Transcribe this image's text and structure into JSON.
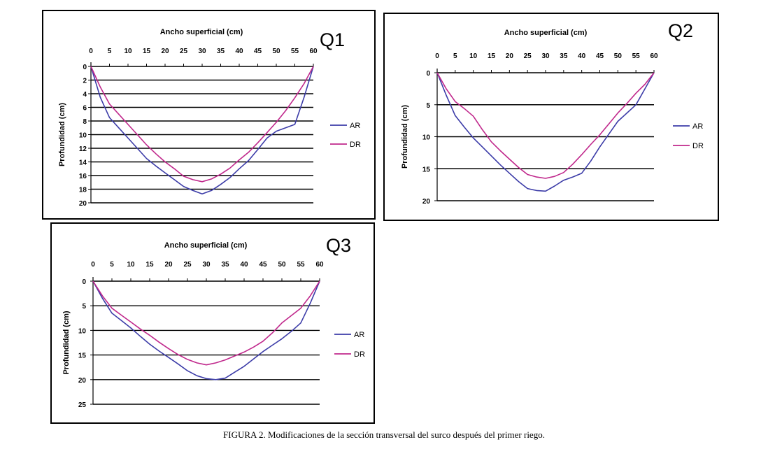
{
  "caption": "FIGURA 2. Modificaciones de la sección transversal del surco después del primer riego.",
  "colors": {
    "AR": "#3c3ca8",
    "DR": "#c0288c",
    "grid": "#000000"
  },
  "chart_data": [
    {
      "type": "line",
      "title": "Q1",
      "xlabel": "Ancho superficial (cm)",
      "ylabel": "Profundidad (cm)",
      "xlim": [
        0,
        60
      ],
      "ylim": [
        0,
        20
      ],
      "y_inverted": true,
      "x_axis_position": "top",
      "xticks": [
        0,
        5,
        10,
        15,
        20,
        25,
        30,
        35,
        40,
        45,
        50,
        55,
        60
      ],
      "yticks": [
        0,
        2,
        4,
        6,
        8,
        10,
        12,
        14,
        16,
        18,
        20
      ],
      "legend": "right",
      "x": [
        0,
        2.5,
        5,
        7.5,
        10,
        12.5,
        15,
        17.5,
        20,
        22.5,
        25,
        27.5,
        30,
        32.5,
        35,
        37.5,
        40,
        42.5,
        45,
        47.5,
        50,
        52.5,
        55,
        57.5,
        60
      ],
      "series": [
        {
          "name": "AR",
          "values": [
            0,
            4.5,
            7.5,
            9,
            10.5,
            12,
            13.5,
            14.6,
            15.6,
            16.6,
            17.6,
            18.2,
            18.7,
            18.2,
            17.3,
            16.3,
            15,
            13.8,
            12.2,
            10.5,
            9.5,
            9,
            8.5,
            4.5,
            0
          ]
        },
        {
          "name": "DR",
          "values": [
            0,
            3,
            5.5,
            7,
            8.5,
            10,
            11.5,
            12.8,
            14,
            15,
            16.1,
            16.6,
            16.9,
            16.5,
            15.8,
            14.9,
            13.7,
            12.6,
            11.2,
            9.7,
            8.2,
            6.5,
            4.6,
            2.5,
            0
          ]
        }
      ]
    },
    {
      "type": "line",
      "title": "Q2",
      "xlabel": "Ancho superficial (cm)",
      "ylabel": "Profundidad (cm)",
      "xlim": [
        0,
        60
      ],
      "ylim": [
        0,
        20
      ],
      "y_inverted": true,
      "x_axis_position": "top",
      "xticks": [
        0,
        5,
        10,
        15,
        20,
        25,
        30,
        35,
        40,
        45,
        50,
        55,
        60
      ],
      "yticks": [
        0,
        5,
        10,
        15,
        20
      ],
      "legend": "right",
      "x": [
        0,
        2.5,
        5,
        7.5,
        10,
        12.5,
        15,
        17.5,
        20,
        22.5,
        25,
        27.5,
        30,
        32.5,
        35,
        37.5,
        40,
        42.5,
        45,
        47.5,
        50,
        52.5,
        55,
        57.5,
        60
      ],
      "series": [
        {
          "name": "AR",
          "values": [
            0,
            3.5,
            6.7,
            8.5,
            10.2,
            11.6,
            13,
            14.4,
            15.7,
            17,
            18.1,
            18.4,
            18.5,
            17.7,
            16.8,
            16.3,
            15.7,
            13.8,
            11.6,
            9.6,
            7.6,
            6.3,
            5,
            2.5,
            0
          ]
        },
        {
          "name": "DR",
          "values": [
            0,
            2.5,
            4.5,
            5.6,
            6.8,
            8.9,
            10.8,
            12.2,
            13.5,
            14.8,
            15.9,
            16.3,
            16.5,
            16.2,
            15.6,
            14.3,
            12.8,
            11.2,
            9.7,
            8,
            6.3,
            4.8,
            3.2,
            1.8,
            0
          ]
        }
      ]
    },
    {
      "type": "line",
      "title": "Q3",
      "xlabel": "Ancho superficial (cm)",
      "ylabel": "Profundidad (cm)",
      "xlim": [
        0,
        60
      ],
      "ylim": [
        0,
        25
      ],
      "y_inverted": true,
      "x_axis_position": "top",
      "xticks": [
        0,
        5,
        10,
        15,
        20,
        25,
        30,
        35,
        40,
        45,
        50,
        55,
        60
      ],
      "yticks": [
        0,
        5,
        10,
        15,
        20,
        25
      ],
      "legend": "right",
      "x": [
        0,
        2.5,
        5,
        7.5,
        10,
        12.5,
        15,
        17.5,
        20,
        22.5,
        25,
        27.5,
        30,
        32.5,
        35,
        37.5,
        40,
        42.5,
        45,
        47.5,
        50,
        52.5,
        55,
        57.5,
        60
      ],
      "series": [
        {
          "name": "AR",
          "values": [
            0,
            3.5,
            6.5,
            8,
            9.5,
            11.2,
            12.8,
            14.2,
            15.5,
            16.8,
            18.2,
            19.2,
            19.8,
            20,
            19.7,
            18.5,
            17.3,
            15.8,
            14.3,
            13,
            11.7,
            10.2,
            8.5,
            4.5,
            0
          ]
        },
        {
          "name": "DR",
          "values": [
            0,
            3,
            5.5,
            6.9,
            8.3,
            9.7,
            11,
            12.4,
            13.7,
            14.9,
            15.9,
            16.6,
            17,
            16.6,
            16,
            15.2,
            14.4,
            13.4,
            12.2,
            10.5,
            8.5,
            7,
            5.5,
            3,
            0
          ]
        }
      ]
    }
  ]
}
